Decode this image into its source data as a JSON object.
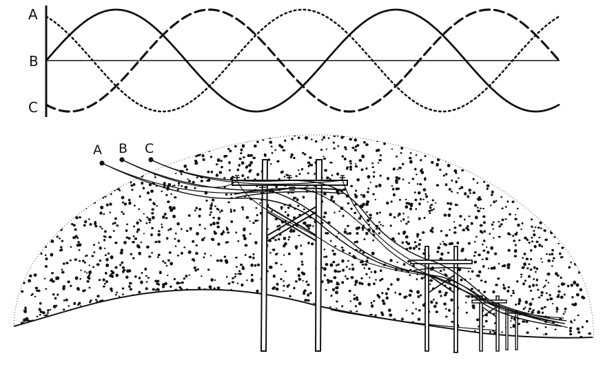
{
  "waveform": {
    "phase_labels": {
      "a": "A",
      "b": "B",
      "c": "C"
    }
  },
  "power_lines": {
    "conductor_labels": {
      "a": "A",
      "b": "B",
      "c": "C"
    }
  },
  "colors": {
    "ink": "#111111",
    "background": "#ffffff"
  }
}
